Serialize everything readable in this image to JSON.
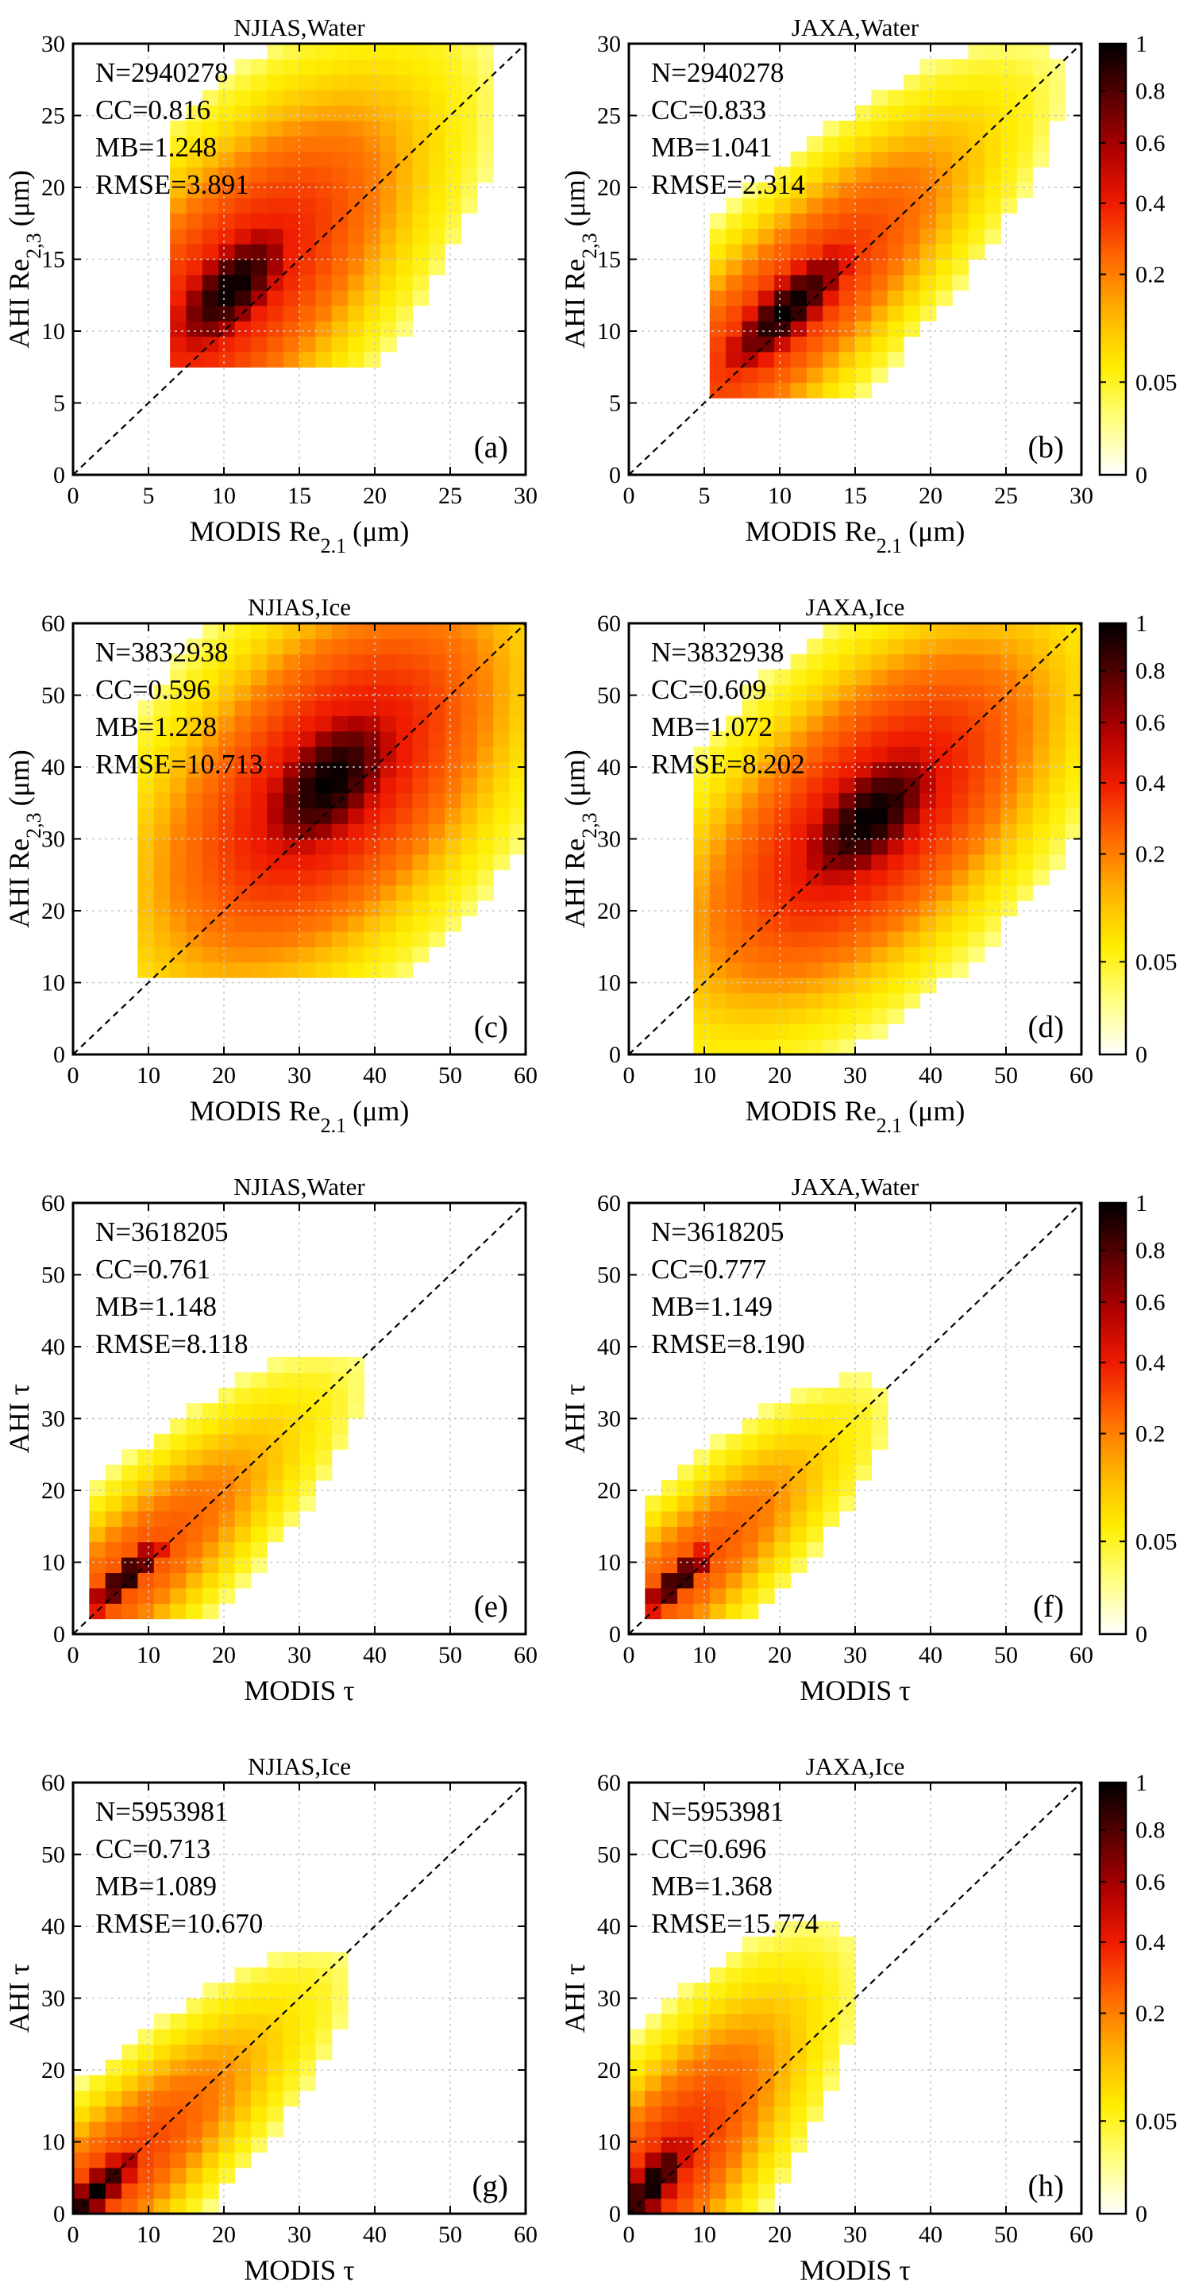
{
  "figure": {
    "colormap": [
      "#ffffff",
      "#ffff80",
      "#ffee00",
      "#ffb300",
      "#ff6a00",
      "#f01c00",
      "#b00000",
      "#5a0000",
      "#000000"
    ],
    "colorbar_ticks": [
      "1",
      "0.8",
      "0.6",
      "0.4",
      "0.2",
      "0.05",
      "0"
    ]
  },
  "chart_data": [
    {
      "type": "heatmap",
      "id": "a",
      "title": "NJIAS,Water",
      "panel_label": "(a)",
      "xlabel": "MODIS Re",
      "xlabel_sub": "2.1",
      "xlabel_unit": "(μm)",
      "ylabel": "AHI Re",
      "ylabel_sub": "2,3",
      "ylabel_unit": "(μm)",
      "xlim": [
        0,
        30
      ],
      "ylim": [
        0,
        30
      ],
      "xticks": [
        0,
        5,
        10,
        15,
        20,
        25,
        30
      ],
      "yticks": [
        0,
        5,
        10,
        15,
        20,
        25,
        30
      ],
      "stats": [
        "N=2940278",
        "CC=0.816",
        "MB=1.248",
        "RMSE=3.891"
      ],
      "one_to_one_line": true,
      "density": {
        "center": [
          10.5,
          13.0
        ],
        "sigma_major": 4.0,
        "sigma_minor": 1.8,
        "slope_deg": 50,
        "x_min": 6.5,
        "y_min": 8.0,
        "halo_weight": 0.45,
        "halo_scale": 2.6
      },
      "colorbar": false
    },
    {
      "type": "heatmap",
      "id": "b",
      "title": "JAXA,Water",
      "panel_label": "(b)",
      "xlabel": "MODIS Re",
      "xlabel_sub": "2.1",
      "xlabel_unit": "(μm)",
      "ylabel": "AHI Re",
      "ylabel_sub": "2,3",
      "ylabel_unit": "(μm)",
      "xlim": [
        0,
        30
      ],
      "ylim": [
        0,
        30
      ],
      "xticks": [
        0,
        5,
        10,
        15,
        20,
        25,
        30
      ],
      "yticks": [
        0,
        5,
        10,
        15,
        20,
        25,
        30
      ],
      "stats": [
        "N=2940278",
        "CC=0.833",
        "MB=1.041",
        "RMSE=2.314"
      ],
      "one_to_one_line": true,
      "density": {
        "center": [
          10.5,
          11.5
        ],
        "sigma_major": 4.2,
        "sigma_minor": 1.3,
        "slope_deg": 46,
        "x_min": 5.5,
        "y_min": 5.0,
        "halo_weight": 0.4,
        "halo_scale": 2.6
      },
      "colorbar": true
    },
    {
      "type": "heatmap",
      "id": "c",
      "title": "NJIAS,Ice",
      "panel_label": "(c)",
      "xlabel": "MODIS Re",
      "xlabel_sub": "2.1",
      "xlabel_unit": "(μm)",
      "ylabel": "AHI Re",
      "ylabel_sub": "2,3",
      "ylabel_unit": "(μm)",
      "xlim": [
        0,
        60
      ],
      "ylim": [
        0,
        60
      ],
      "xticks": [
        0,
        10,
        20,
        30,
        40,
        50,
        60
      ],
      "yticks": [
        0,
        10,
        20,
        30,
        40,
        50,
        60
      ],
      "stats": [
        "N=3832938",
        "CC=0.596",
        "MB=1.228",
        "RMSE=10.713"
      ],
      "one_to_one_line": true,
      "density": {
        "center": [
          34,
          38
        ],
        "sigma_major": 9.0,
        "sigma_minor": 5.0,
        "slope_deg": 52,
        "x_min": 8,
        "y_min": 10,
        "halo_weight": 0.5,
        "halo_scale": 2.2
      },
      "colorbar": false
    },
    {
      "type": "heatmap",
      "id": "d",
      "title": "JAXA,Ice",
      "panel_label": "(d)",
      "xlabel": "MODIS Re",
      "xlabel_sub": "2.1",
      "xlabel_unit": "(μm)",
      "ylabel": "AHI Re",
      "ylabel_sub": "2,3",
      "ylabel_unit": "(μm)",
      "xlim": [
        0,
        60
      ],
      "ylim": [
        0,
        60
      ],
      "xticks": [
        0,
        10,
        20,
        30,
        40,
        50,
        60
      ],
      "yticks": [
        0,
        10,
        20,
        30,
        40,
        50,
        60
      ],
      "stats": [
        "N=3832938",
        "CC=0.609",
        "MB=1.072",
        "RMSE=8.202"
      ],
      "one_to_one_line": true,
      "density": {
        "center": [
          32,
          33
        ],
        "sigma_major": 9.0,
        "sigma_minor": 4.5,
        "slope_deg": 48,
        "x_min": 9,
        "y_min": 0,
        "halo_weight": 0.5,
        "halo_scale": 2.2
      },
      "colorbar": true
    },
    {
      "type": "heatmap",
      "id": "e",
      "title": "NJIAS,Water",
      "panel_label": "(e)",
      "xlabel": "MODIS τ",
      "xlabel_sub": "",
      "xlabel_unit": "",
      "ylabel": "AHI τ",
      "ylabel_sub": "",
      "ylabel_unit": "",
      "xlim": [
        0,
        60
      ],
      "ylim": [
        0,
        60
      ],
      "xticks": [
        0,
        10,
        20,
        30,
        40,
        50,
        60
      ],
      "yticks": [
        0,
        10,
        20,
        30,
        40,
        50,
        60
      ],
      "stats": [
        "N=3618205",
        "CC=0.761",
        "MB=1.148",
        "RMSE=8.118"
      ],
      "one_to_one_line": true,
      "density": {
        "center": [
          7,
          8
        ],
        "sigma_major": 5.0,
        "sigma_minor": 1.4,
        "slope_deg": 45,
        "x_min": 2,
        "y_min": 2,
        "halo_weight": 0.3,
        "halo_scale": 4.0
      },
      "colorbar": false
    },
    {
      "type": "heatmap",
      "id": "f",
      "title": "JAXA,Water",
      "panel_label": "(f)",
      "xlabel": "MODIS τ",
      "xlabel_sub": "",
      "xlabel_unit": "",
      "ylabel": "AHI τ",
      "ylabel_sub": "",
      "ylabel_unit": "",
      "xlim": [
        0,
        60
      ],
      "ylim": [
        0,
        60
      ],
      "xticks": [
        0,
        10,
        20,
        30,
        40,
        50,
        60
      ],
      "yticks": [
        0,
        10,
        20,
        30,
        40,
        50,
        60
      ],
      "stats": [
        "N=3618205",
        "CC=0.777",
        "MB=1.149",
        "RMSE=8.190"
      ],
      "one_to_one_line": true,
      "density": {
        "center": [
          6.5,
          7.5
        ],
        "sigma_major": 4.5,
        "sigma_minor": 1.3,
        "slope_deg": 45,
        "x_min": 2,
        "y_min": 2,
        "halo_weight": 0.3,
        "halo_scale": 4.0
      },
      "colorbar": true
    },
    {
      "type": "heatmap",
      "id": "g",
      "title": "NJIAS,Ice",
      "panel_label": "(g)",
      "xlabel": "MODIS τ",
      "xlabel_sub": "",
      "xlabel_unit": "",
      "ylabel": "AHI τ",
      "ylabel_sub": "",
      "ylabel_unit": "",
      "xlim": [
        0,
        60
      ],
      "ylim": [
        0,
        60
      ],
      "xticks": [
        0,
        10,
        20,
        30,
        40,
        50,
        60
      ],
      "yticks": [
        0,
        10,
        20,
        30,
        40,
        50,
        60
      ],
      "stats": [
        "N=5953981",
        "CC=0.713",
        "MB=1.089",
        "RMSE=10.670"
      ],
      "one_to_one_line": true,
      "density": {
        "center": [
          3,
          3
        ],
        "sigma_major": 6.0,
        "sigma_minor": 1.6,
        "slope_deg": 45,
        "x_min": 0,
        "y_min": 0,
        "halo_weight": 0.35,
        "halo_scale": 3.5
      },
      "colorbar": false
    },
    {
      "type": "heatmap",
      "id": "h",
      "title": "JAXA,Ice",
      "panel_label": "(h)",
      "xlabel": "MODIS τ",
      "xlabel_sub": "",
      "xlabel_unit": "",
      "ylabel": "AHI τ",
      "ylabel_sub": "",
      "ylabel_unit": "",
      "xlim": [
        0,
        60
      ],
      "ylim": [
        0,
        60
      ],
      "xticks": [
        0,
        10,
        20,
        30,
        40,
        50,
        60
      ],
      "yticks": [
        0,
        10,
        20,
        30,
        40,
        50,
        60
      ],
      "stats": [
        "N=5953981",
        "CC=0.696",
        "MB=1.368",
        "RMSE=15.774"
      ],
      "one_to_one_line": true,
      "density": {
        "center": [
          3,
          4
        ],
        "sigma_major": 6.0,
        "sigma_minor": 2.0,
        "slope_deg": 55,
        "x_min": 0,
        "y_min": 0,
        "halo_weight": 0.4,
        "halo_scale": 3.2
      },
      "colorbar": true
    }
  ]
}
